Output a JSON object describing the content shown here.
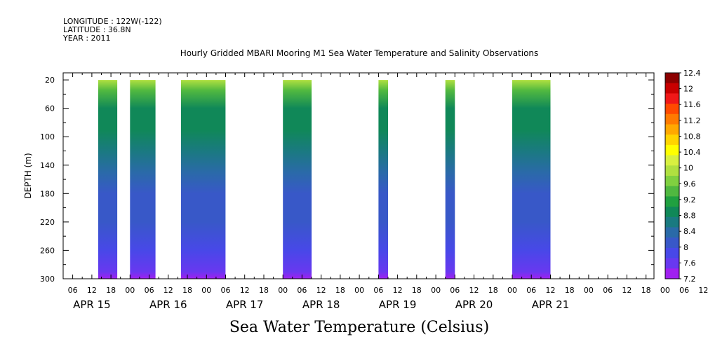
{
  "header": {
    "longitude": "LONGITUDE : 122W(-122)",
    "latitude": "LATITUDE : 36.8N",
    "year": "YEAR : 2011"
  },
  "chart_data": {
    "type": "heatmap",
    "title": "Hourly Gridded MBARI Mooring M1 Sea Water Temperature and Salinity Observations",
    "xlabel": "Sea Water Temperature (Celsius)",
    "ylabel": "DEPTH (m)",
    "yticks": [
      "20",
      "60",
      "100",
      "140",
      "180",
      "220",
      "260",
      "300"
    ],
    "ylim": [
      300,
      10
    ],
    "hour_labels": [
      "06",
      "12",
      "18",
      "00",
      "06",
      "12",
      "18",
      "00",
      "06",
      "12",
      "18",
      "00",
      "06",
      "12",
      "18",
      "00",
      "06",
      "12",
      "18",
      "00",
      "06",
      "12",
      "18",
      "00",
      "06",
      "12",
      "18",
      "00",
      "06",
      "12",
      "18",
      "00",
      "06",
      "12",
      "18"
    ],
    "day_labels": [
      "APR 15",
      "APR 16",
      "APR 17",
      "APR 18",
      "APR 19",
      "APR 20",
      "APR 21"
    ],
    "colorbar_ticks": [
      "12.4",
      "12",
      "11.6",
      "11.2",
      "10.8",
      "10.4",
      "10",
      "9.6",
      "9.2",
      "8.8",
      "8.4",
      "8",
      "7.6",
      "7.2"
    ],
    "colorbar_colors": [
      "#8c0000",
      "#c80000",
      "#f01818",
      "#ff4a00",
      "#ff7a00",
      "#ffa800",
      "#ffd400",
      "#ffff00",
      "#d8f040",
      "#b0e040",
      "#80d040",
      "#50b840",
      "#20a040",
      "#108858",
      "#1a7a80",
      "#2a6aa8",
      "#3858c8",
      "#4848e8",
      "#6838f0",
      "#a020f0"
    ],
    "colorbar_range": [
      7.2,
      12.4
    ],
    "data_blocks": [
      {
        "start": "APR 15 14:00",
        "end": "APR 15 20:00"
      },
      {
        "start": "APR 16 00:00",
        "end": "APR 16 08:00"
      },
      {
        "start": "APR 16 16:00",
        "end": "APR 17 06:00"
      },
      {
        "start": "APR 18 00:00",
        "end": "APR 18 09:00"
      },
      {
        "start": "APR 19 06:00",
        "end": "APR 19 09:00"
      },
      {
        "start": "APR 20 03:00",
        "end": "APR 20 06:00"
      },
      {
        "start": "APR 21 00:00",
        "end": "APR 21 12:00"
      }
    ],
    "depth_profile": [
      {
        "depth": 20,
        "temperature": 9.8
      },
      {
        "depth": 35,
        "temperature": 9.3
      },
      {
        "depth": 60,
        "temperature": 9.0
      },
      {
        "depth": 90,
        "temperature": 8.8
      },
      {
        "depth": 120,
        "temperature": 8.6
      },
      {
        "depth": 150,
        "temperature": 8.4
      },
      {
        "depth": 180,
        "temperature": 8.2
      },
      {
        "depth": 220,
        "temperature": 8.0
      },
      {
        "depth": 260,
        "temperature": 7.8
      },
      {
        "depth": 290,
        "temperature": 7.6
      },
      {
        "depth": 300,
        "temperature": 7.4
      }
    ]
  }
}
